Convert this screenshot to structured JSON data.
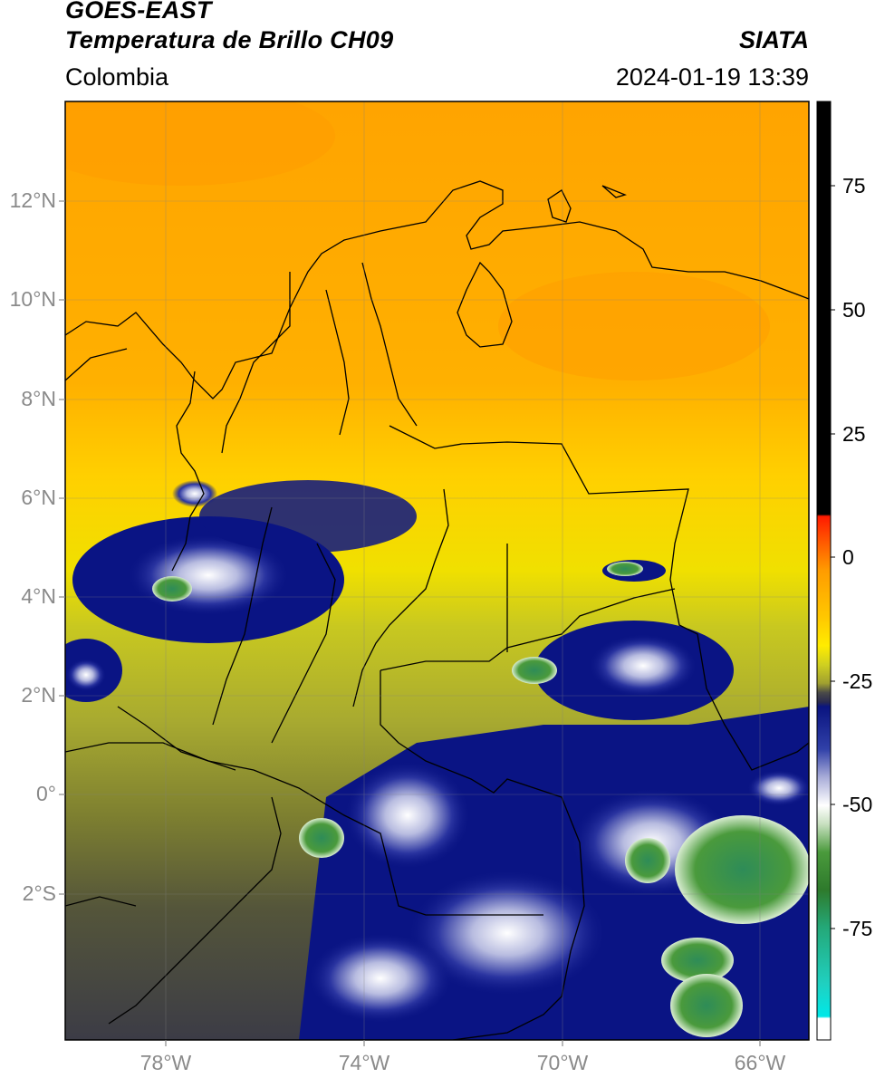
{
  "header": {
    "satellite": "GOES-EAST",
    "product": "Temperatura de Brillo CH09",
    "brand": "SIATA",
    "region": "Colombia",
    "datetime": "2024-01-19 13:39"
  },
  "map": {
    "lat_labels": [
      "12°N",
      "10°N",
      "8°N",
      "6°N",
      "4°N",
      "2°N",
      "0°",
      "2°S"
    ],
    "lon_labels": [
      "78°W",
      "74°W",
      "70°W",
      "66°W"
    ],
    "extent": {
      "lon_min": -80,
      "lon_max": -65,
      "lat_min": -5,
      "lat_max": 14
    }
  },
  "colorbar": {
    "ticks": [
      "75",
      "50",
      "25",
      "0",
      "-25",
      "-50",
      "-75"
    ],
    "range": [
      -97,
      90
    ],
    "colors": {
      "warm_top": "#000000",
      "red": "#ff2000",
      "orange": "#ffa000",
      "yellow": "#ffe800",
      "olive": "#a8ae30",
      "dark_gray": "#3c3c46",
      "navy": "#0a1484",
      "white": "#ffffff",
      "green": "#3c8c2c",
      "teal": "#28c09c",
      "cyan": "#00e0e0"
    }
  }
}
